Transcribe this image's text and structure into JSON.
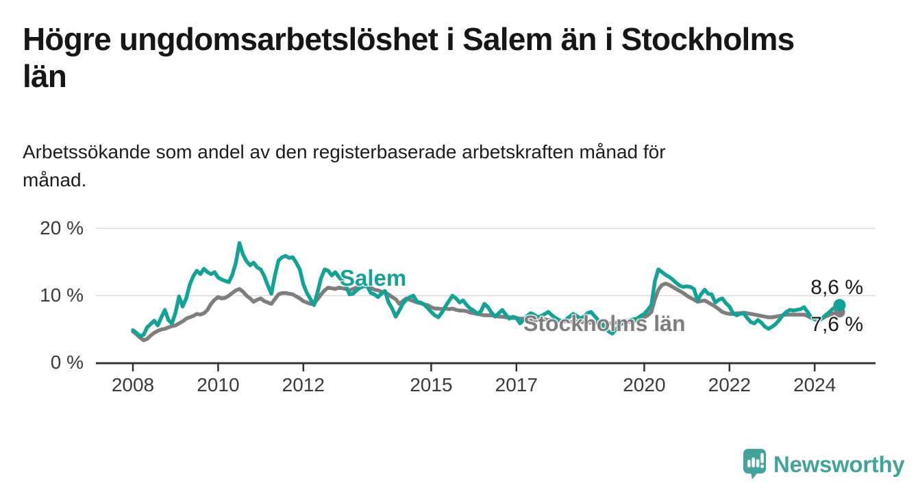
{
  "header": {
    "title": "Högre ungdomsarbetslöshet i Salem än i Stockholms län",
    "title_lines": [
      "Högre ungdomsarbetslöshet i Salem än i Stockholms",
      "län"
    ],
    "subtitle": "Arbetssökande som andel av den registerbaserade arbetskraften månad för månad.",
    "subtitle_lines": [
      "Arbetssökande som andel av den registerbaserade arbetskraften månad för",
      "månad."
    ]
  },
  "logo": {
    "text": "Newsworthy",
    "color": "#43a39c"
  },
  "chart_data": {
    "type": "line",
    "title": "Högre ungdomsarbetslöshet i Salem än i Stockholms län",
    "xlabel": "",
    "ylabel": "Arbetssökande som andel av den registerbaserade arbetskraften",
    "x_unit": "month",
    "x_start": "2008-01",
    "x_end": "2024-08",
    "ylim": [
      0,
      22
    ],
    "grid": "horizontal",
    "legend_position": "inline-labels-on-lines",
    "y_ticks": [
      20,
      10,
      0
    ],
    "y_tick_labels": [
      "20 %",
      "10 %",
      "0 %"
    ],
    "x_ticks": [
      2008,
      2010,
      2012,
      2015,
      2017,
      2020,
      2022,
      2024
    ],
    "axis_color": "#343434",
    "gridline_color": "#dadada",
    "series": [
      {
        "name": "Salem",
        "color": "#14a296",
        "end_label": "8,6 %",
        "end_value": 8.6,
        "values": [
          4.9,
          4.5,
          4.0,
          4.2,
          5.3,
          5.8,
          6.3,
          5.6,
          6.8,
          7.9,
          6.4,
          5.9,
          7.5,
          9.9,
          8.4,
          9.6,
          11.6,
          12.9,
          13.7,
          13.2,
          14.0,
          13.5,
          13.2,
          13.5,
          12.7,
          12.4,
          12.2,
          12.0,
          13.1,
          14.9,
          17.8,
          16.1,
          15.1,
          14.5,
          14.9,
          14.2,
          13.9,
          12.9,
          11.5,
          10.3,
          13.0,
          15.2,
          15.7,
          15.9,
          15.6,
          15.7,
          14.9,
          13.9,
          11.7,
          10.4,
          9.5,
          8.6,
          10.5,
          12.6,
          13.9,
          13.7,
          13.0,
          13.5,
          12.8,
          12.2,
          11.5,
          10.2,
          10.3,
          10.8,
          11.2,
          11.4,
          11.4,
          10.4,
          10.2,
          9.8,
          10.3,
          10.7,
          9.0,
          8.1,
          6.9,
          7.8,
          8.8,
          9.4,
          9.8,
          10.0,
          9.1,
          9.0,
          8.7,
          8.2,
          7.6,
          7.1,
          6.8,
          7.5,
          8.4,
          9.2,
          10.0,
          9.6,
          9.0,
          9.3,
          8.6,
          8.1,
          7.8,
          7.3,
          7.7,
          8.8,
          8.3,
          7.5,
          6.9,
          7.4,
          7.9,
          7.2,
          6.6,
          6.9,
          6.7,
          5.9,
          6.4,
          7.0,
          7.4,
          7.2,
          6.8,
          7.0,
          7.3,
          7.6,
          7.1,
          6.7,
          6.4,
          6.2,
          6.5,
          6.9,
          7.3,
          7.0,
          6.6,
          6.9,
          7.4,
          7.6,
          7.0,
          6.4,
          5.8,
          5.2,
          4.7,
          4.4,
          5.0,
          5.6,
          6.0,
          6.2,
          6.4,
          6.5,
          6.6,
          7.0,
          7.3,
          7.9,
          8.6,
          12.2,
          13.9,
          13.5,
          13.1,
          12.8,
          12.4,
          11.9,
          11.5,
          11.3,
          11.4,
          11.3,
          11.0,
          9.3,
          10.2,
          10.9,
          10.3,
          10.2,
          9.0,
          9.4,
          9.6,
          8.9,
          8.4,
          7.4,
          7.1,
          7.3,
          7.4,
          6.7,
          6.1,
          5.9,
          6.4,
          6.0,
          5.4,
          5.1,
          5.4,
          5.8,
          6.4,
          7.1,
          7.6,
          7.9,
          7.8,
          7.9,
          8.0,
          8.3,
          7.6,
          6.8,
          6.5,
          6.3,
          6.6,
          7.1,
          7.5,
          8.0,
          8.4,
          8.6
        ]
      },
      {
        "name": "Stockholms län",
        "color": "#7e7e7e",
        "end_label": "7,6 %",
        "end_value": 7.6,
        "values": [
          4.7,
          4.3,
          3.8,
          3.4,
          3.6,
          4.1,
          4.5,
          4.8,
          5.0,
          5.1,
          5.3,
          5.5,
          5.6,
          5.9,
          6.2,
          6.6,
          6.8,
          7.0,
          7.3,
          7.2,
          7.4,
          7.9,
          8.8,
          9.4,
          9.8,
          9.6,
          9.7,
          10.0,
          10.4,
          10.8,
          11.0,
          10.6,
          10.0,
          9.6,
          9.1,
          9.4,
          9.6,
          9.2,
          9.0,
          8.8,
          9.5,
          10.2,
          10.4,
          10.4,
          10.3,
          10.2,
          9.9,
          9.6,
          9.2,
          9.0,
          8.8,
          8.8,
          9.5,
          10.2,
          10.8,
          11.2,
          11.1,
          11.0,
          11.2,
          11.1,
          11.0,
          10.8,
          11.0,
          11.2,
          11.3,
          11.5,
          11.4,
          11.2,
          10.9,
          10.8,
          10.6,
          10.5,
          10.2,
          9.8,
          9.5,
          8.8,
          9.2,
          9.6,
          9.4,
          9.2,
          9.0,
          8.9,
          8.7,
          8.6,
          8.3,
          8.1,
          8.1,
          8.0,
          8.1,
          8.0,
          8.1,
          7.9,
          7.8,
          7.8,
          7.7,
          7.5,
          7.4,
          7.3,
          7.2,
          7.1,
          7.1,
          7.1,
          7.0,
          6.9,
          6.9,
          6.8,
          6.8,
          6.7,
          6.7,
          6.6,
          6.6,
          6.5,
          6.5,
          6.4,
          6.4,
          6.4,
          6.5,
          6.4,
          6.4,
          6.3,
          6.3,
          6.2,
          6.2,
          6.1,
          6.1,
          6.2,
          6.1,
          6.1,
          6.0,
          6.0,
          6.0,
          6.0,
          6.0,
          5.9,
          5.9,
          5.9,
          6.0,
          6.1,
          6.2,
          6.2,
          6.1,
          6.2,
          6.4,
          6.6,
          6.8,
          7.1,
          7.6,
          9.5,
          10.9,
          11.6,
          11.8,
          11.6,
          11.3,
          11.0,
          10.7,
          10.4,
          10.0,
          9.7,
          9.4,
          9.1,
          9.2,
          9.3,
          9.0,
          8.7,
          8.4,
          8.0,
          7.6,
          7.4,
          7.3,
          7.3,
          7.4,
          7.4,
          7.5,
          7.4,
          7.3,
          7.2,
          7.1,
          7.0,
          6.9,
          6.8,
          6.8,
          6.9,
          7.0,
          7.1,
          7.2,
          7.2,
          7.2,
          7.2,
          7.2,
          7.2,
          7.0,
          6.7,
          6.6,
          6.4,
          6.6,
          6.9,
          7.1,
          7.3,
          7.5,
          7.6
        ]
      }
    ]
  }
}
